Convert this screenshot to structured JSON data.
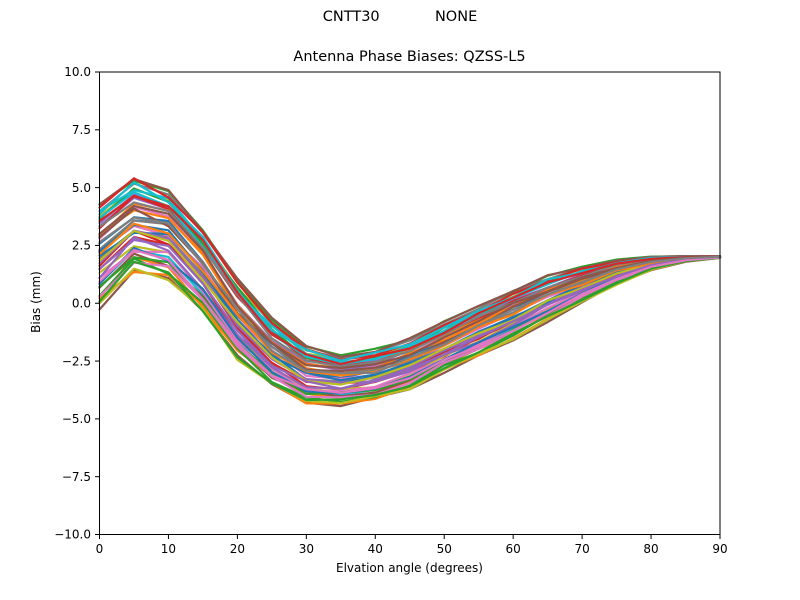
{
  "figure": {
    "suptitle": "CNTT30            NONE",
    "title": "Antenna Phase Biases: QZSS-L5",
    "xlabel": "Elvation angle (degrees)",
    "ylabel": "Bias (mm)"
  },
  "chart_data": {
    "type": "line",
    "title": "Antenna Phase Biases: QZSS-L5",
    "suptitle": "CNTT30            NONE",
    "xlabel": "Elvation angle (degrees)",
    "ylabel": "Bias (mm)",
    "xlim": [
      0,
      90
    ],
    "ylim": [
      -10.0,
      10.0
    ],
    "xticks": [
      0,
      10,
      20,
      30,
      40,
      50,
      60,
      70,
      80,
      90
    ],
    "xtick_labels": [
      "0",
      "10",
      "20",
      "30",
      "40",
      "50",
      "60",
      "70",
      "80",
      "90"
    ],
    "yticks": [
      10.0,
      7.5,
      5.0,
      2.5,
      0.0,
      -2.5,
      -5.0,
      -7.5,
      -10.0
    ],
    "ytick_labels": [
      "10.0",
      "7.5",
      "5.0",
      "2.5",
      "0.0",
      "−2.5",
      "−5.0",
      "−7.5",
      "−10.0"
    ],
    "grid": false,
    "legend": "none",
    "description": "Bundle of unlabeled per-satellite/antenna phase-bias curves; each curve = band_mean + offset*band_halfwidth (mm), sampled every 5 degrees, all converging to 2.0 mm at 90 degrees",
    "x": [
      0,
      5,
      10,
      15,
      20,
      25,
      30,
      35,
      40,
      45,
      50,
      55,
      60,
      65,
      70,
      75,
      80,
      85,
      90
    ],
    "band_mean": [
      2.1,
      3.4,
      3.0,
      1.4,
      -0.7,
      -2.2,
      -3.1,
      -3.3,
      -3.1,
      -2.6,
      -1.9,
      -1.2,
      -0.5,
      0.2,
      0.8,
      1.35,
      1.72,
      1.92,
      2.0
    ],
    "band_halfwidth": [
      2.3,
      2.12,
      1.98,
      1.89,
      1.79,
      1.5,
      1.27,
      1.1,
      1.1,
      1.1,
      1.1,
      1.1,
      1.08,
      0.97,
      0.76,
      0.55,
      0.3,
      0.12,
      0.04
    ],
    "band_top": [
      4.6,
      5.7,
      5.1,
      3.3,
      1.1,
      -0.7,
      -1.8,
      -2.2,
      -2.0,
      -1.5,
      -0.8,
      -0.1,
      0.58,
      1.17,
      1.56,
      1.9,
      2.02,
      2.04,
      2.04
    ],
    "band_bottom": [
      -0.3,
      1.2,
      0.9,
      -0.5,
      -2.5,
      -3.7,
      -4.2,
      -4.4,
      -4.2,
      -3.7,
      -3.0,
      -2.3,
      -1.6,
      -0.8,
      0.0,
      0.8,
      1.42,
      1.8,
      1.96
    ],
    "num_lines": 48,
    "line_offsets": [
      0.12,
      -0.74,
      0.95,
      -0.31,
      0.58,
      -0.96,
      0.35,
      -0.12,
      0.81,
      -0.55,
      0.22,
      -0.88,
      0.68,
      -0.22,
      0.45,
      -0.65,
      0.05,
      0.91,
      -0.41,
      0.72,
      -0.08,
      0.31,
      -0.79,
      0.55,
      -0.18,
      0.99,
      -0.48,
      0.15,
      -0.92,
      0.62,
      -0.02,
      0.41,
      -0.61,
      0.85,
      -0.35,
      0.25,
      -0.71,
      0.51,
      -0.15,
      0.78,
      -0.51,
      0.08,
      -0.84,
      0.65,
      -0.27,
      0.38,
      -0.58,
      0.18
    ],
    "wiggle_amp": 0.1,
    "wiggle_seed": 20,
    "line_width": 2.2,
    "colors": [
      "#1f77b4",
      "#ff7f0e",
      "#2ca02c",
      "#d62728",
      "#9467bd",
      "#8c564b",
      "#e377c2",
      "#7f7f7f",
      "#bcbd22",
      "#17becf"
    ],
    "axis_color": "#000000",
    "background_color": "#ffffff"
  }
}
